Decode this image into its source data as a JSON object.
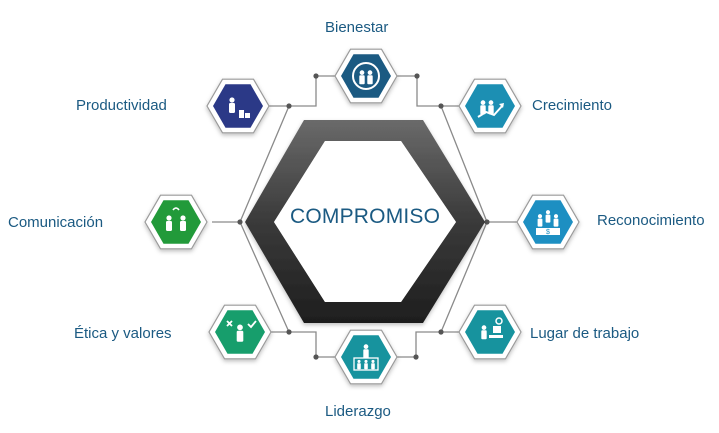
{
  "center": {
    "title": "COMPROMISO"
  },
  "nodes": [
    {
      "key": "bienestar",
      "label": "Bienestar",
      "color": "#1b5a82",
      "icon": "people-cycle-icon"
    },
    {
      "key": "crecimiento",
      "label": "Crecimiento",
      "color": "#1c8fb3",
      "icon": "growth-chart-icon"
    },
    {
      "key": "reconocimiento",
      "label": "Reconocimiento",
      "color": "#1d8fc2",
      "icon": "podium-award-icon"
    },
    {
      "key": "lugar",
      "label": "Lugar de trabajo",
      "color": "#17939e",
      "icon": "workplace-desk-icon"
    },
    {
      "key": "liderazgo",
      "label": "Liderazgo",
      "color": "#17939e",
      "icon": "leader-team-icon"
    },
    {
      "key": "etica",
      "label": "Ética y valores",
      "color": "#179e6c",
      "icon": "ethics-choice-icon"
    },
    {
      "key": "comunicacion",
      "label": "Comunicación",
      "color": "#229a3a",
      "icon": "people-talking-icon"
    },
    {
      "key": "productividad",
      "label": "Productividad",
      "color": "#2b3987",
      "icon": "worker-coins-icon"
    }
  ]
}
